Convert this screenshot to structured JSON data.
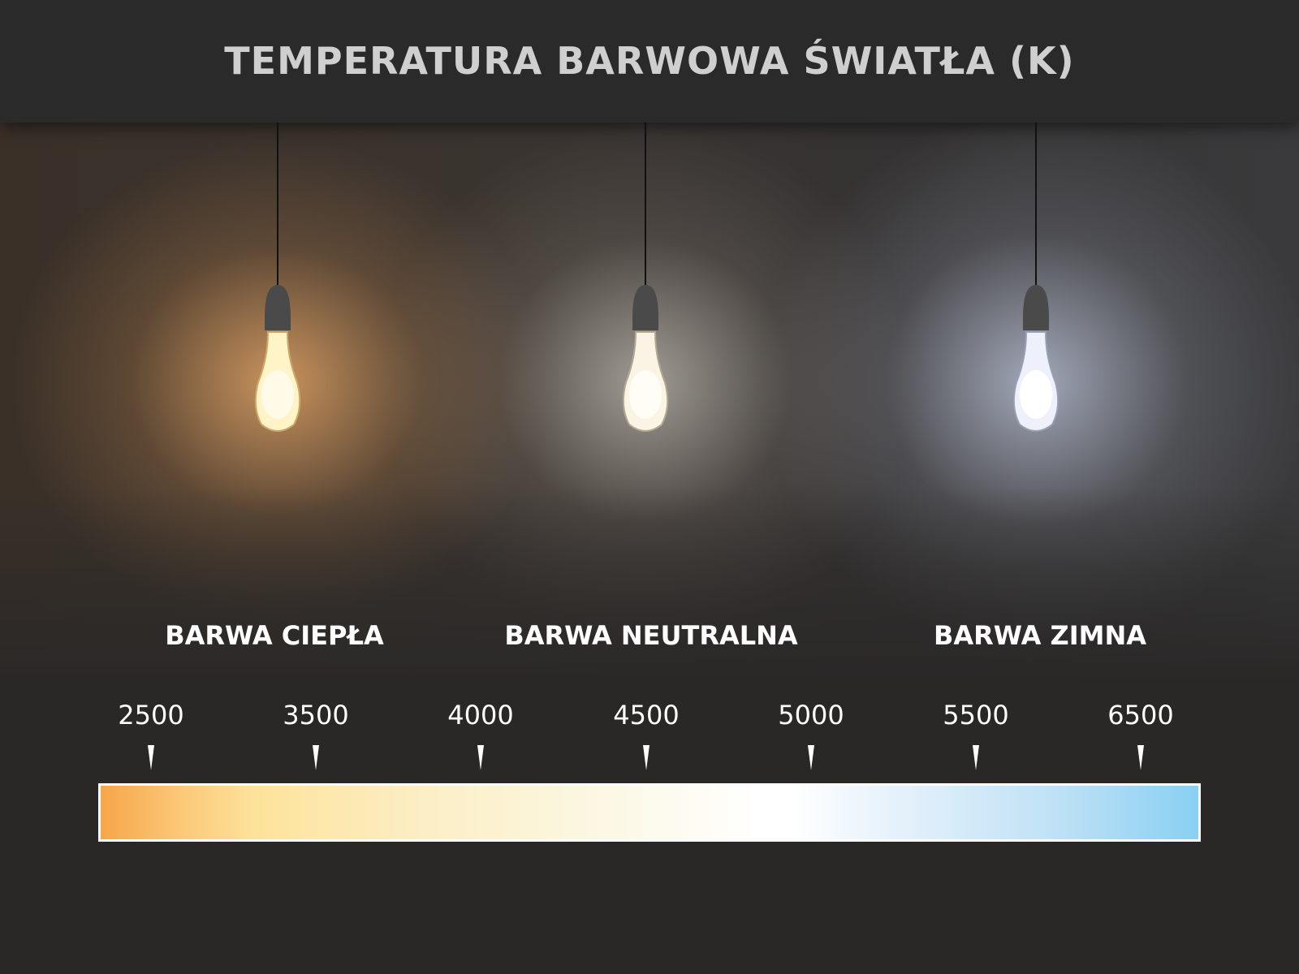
{
  "title": "TEMPERATURA BARWOWA ŚWIATŁA (K)",
  "categories": [
    {
      "label": "BARWA CIEPŁA",
      "glow": "#ffcf8a"
    },
    {
      "label": "BARWA NEUTRALNA",
      "glow": "#fff6e6"
    },
    {
      "label": "BARWA ZIMNA",
      "glow": "#eef2ff"
    }
  ],
  "scale": {
    "ticks": [
      "2500",
      "3500",
      "4000",
      "4500",
      "5000",
      "5500",
      "6500"
    ],
    "gradient": [
      "#f6a64a",
      "#fde29a",
      "#fbf7e2",
      "#ffffff",
      "#89d0f3"
    ]
  }
}
